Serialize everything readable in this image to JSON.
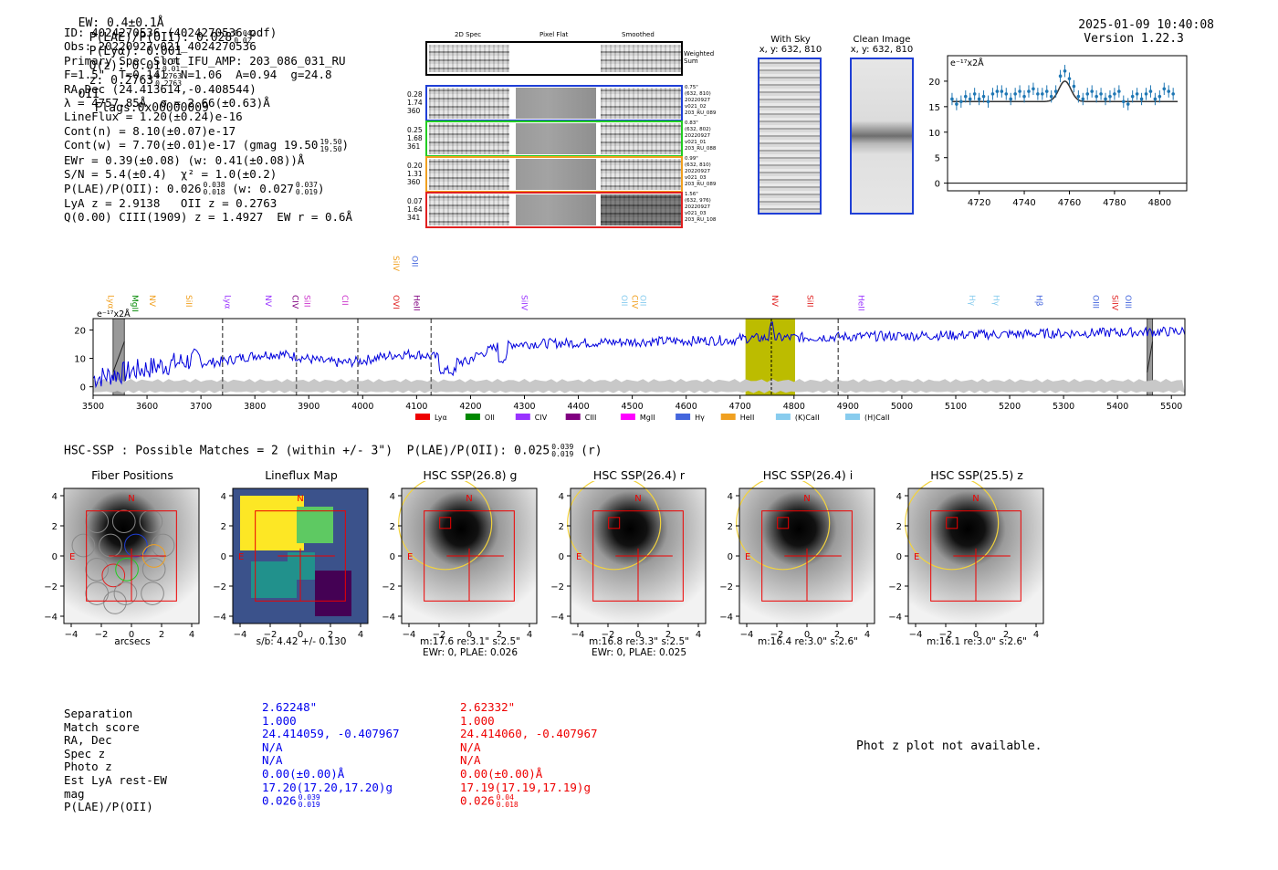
{
  "header": {
    "ew": "EW: 0.4±0.1Å",
    "plae_label": "P(LAE)/P(OII): 0.028",
    "plae_hi": "0.042",
    "plae_lo": "0.02",
    "plya": "P(Lyα): 0.001",
    "qz_label": "Q(z): 0.01",
    "qz_hi": "0.01",
    "qz_lo": "0.01",
    "z_label": "z: 0.2763",
    "z_hi": "0.2763",
    "z_lo": "0.2763",
    "z_line": "OII",
    "flags": "Flags:0x00000009",
    "datetime": "2025-01-09 10:40:08",
    "version": "Version 1.22.3"
  },
  "info": {
    "id": "ID: 4024270536 (4024270536.pdf)",
    "obs": "Obs: 20220927v021_4024270536",
    "primary": "Primary Spec_Slot_IFU_AMP: 203_086_031_RU",
    "fit": "F=1.5\"  T=0.141  N=1.06  A=0.94  g=24.8",
    "radec": "RA,Dec (24.413614,-0.408544)",
    "lambda": "λ = 4757.85Å  σ = 2.66(±0.63)Å",
    "lineflux": "LineFlux = 1.20(±0.24)e-16",
    "contn": "Cont(n) = 8.10(±0.07)e-17",
    "contw": "Cont(w) = 7.70(±0.01)e-17 (gmag 19.50",
    "contw_hi": "19.50",
    "contw_lo": "19.50",
    "contw_close": ")",
    "ewr": "EWr = 0.39(±0.08) (w: 0.41(±0.08))Å",
    "sn": "S/N = 5.4(±0.4)  χ² = 1.0(±0.2)",
    "plae": "P(LAE)/P(OII): 0.026",
    "plae_hi": "0.038",
    "plae_lo": "0.018",
    "plae_w": "(w: 0.027",
    "plae_w_hi": "0.037",
    "plae_w_lo": "0.019",
    "plae_w_close": ")",
    "lyaz": "LyA z = 2.9138   OII z = 0.2763",
    "ciii": "Q(0.00) CIII(1909) z = 1.4927  EW r = 0.6Å"
  },
  "cutouts": {
    "col_2d": "2D Spec",
    "col_flat": "Pixel Flat",
    "col_smooth": "Smoothed",
    "weighted": "Weighted",
    "sum": "Sum",
    "rows": [
      {
        "left": [
          "0.28",
          "1.74",
          "360"
        ],
        "right": [
          "0.75\"",
          "(632, 810)",
          "20220927",
          "v021_02",
          "203_RU_089"
        ],
        "color": "#1f3fd6"
      },
      {
        "left": [
          "0.25",
          "1.68",
          "361"
        ],
        "right": [
          "0.83\"",
          "(632, 802)",
          "20220927",
          "v021_01",
          "203_RU_088"
        ],
        "color": "#22cc22"
      },
      {
        "left": [
          "0.20",
          "1.31",
          "360"
        ],
        "right": [
          "0.99\"",
          "(632, 810)",
          "20220927",
          "v021_03",
          "203_RU_089"
        ],
        "color": "#f0a020"
      },
      {
        "left": [
          "0.07",
          "1.64",
          "341"
        ],
        "right": [
          "1.56\"",
          "(632, 976)",
          "20220927",
          "v021_03",
          "203_RU_108"
        ],
        "color": "#e02020"
      }
    ],
    "with_sky": "With Sky",
    "clean": "Clean Image",
    "xy": "x, y: 632, 810"
  },
  "zoom_chart": {
    "type": "line",
    "title": "e⁻¹⁷x2Å",
    "xlim": [
      4706,
      4812
    ],
    "ylim": [
      -1.5,
      25
    ],
    "xticks": [
      4720,
      4740,
      4760,
      4780,
      4800
    ],
    "yticks": [
      0,
      5,
      10,
      15,
      20
    ],
    "data_x": [
      4708,
      4710,
      4712,
      4714,
      4716,
      4718,
      4720,
      4722,
      4724,
      4726,
      4728,
      4730,
      4732,
      4734,
      4736,
      4738,
      4740,
      4742,
      4744,
      4746,
      4748,
      4750,
      4752,
      4754,
      4756,
      4758,
      4760,
      4762,
      4764,
      4766,
      4768,
      4770,
      4772,
      4774,
      4776,
      4778,
      4780,
      4782,
      4784,
      4786,
      4788,
      4790,
      4792,
      4794,
      4796,
      4798,
      4800,
      4802,
      4804,
      4806
    ],
    "data_y": [
      16.5,
      15.5,
      16,
      17,
      16.5,
      17.5,
      16.5,
      17,
      16,
      17.5,
      18,
      18,
      17.5,
      16.5,
      17.5,
      18,
      17,
      18,
      18.5,
      17.5,
      17.5,
      18,
      17,
      18,
      21,
      22,
      20.5,
      19,
      17,
      16.5,
      17.5,
      18,
      17,
      17.5,
      16.5,
      17,
      17.5,
      18,
      16,
      15.5,
      17,
      17.5,
      16.5,
      17.5,
      18,
      16.5,
      17,
      18.5,
      18,
      17.5
    ],
    "model_peak": 4758,
    "model_base": 16,
    "model_amp": 4,
    "model_sigma": 2.66
  },
  "full_chart": {
    "type": "line",
    "ylabel": "e⁻¹⁷x2Å",
    "xlim": [
      3500,
      5525
    ],
    "ylim": [
      -3,
      24
    ],
    "xticks": [
      3500,
      3600,
      3700,
      3800,
      3900,
      4000,
      4100,
      4200,
      4300,
      4400,
      4500,
      4600,
      4700,
      4800,
      4900,
      5000,
      5100,
      5200,
      5300,
      5400,
      5500
    ],
    "yticks": [
      0,
      10,
      20
    ],
    "highlight": [
      4710,
      4802
    ],
    "dashed": [
      3740,
      3877,
      3991,
      4127,
      4882
    ],
    "gray_bands": [
      [
        3537,
        3558
      ],
      [
        5455,
        5465
      ]
    ],
    "lines": [
      {
        "name": "Lyα",
        "x": 3523,
        "color": "#f0a020"
      },
      {
        "name": "MgII",
        "x": 3568,
        "color": "#008800"
      },
      {
        "name": "NV",
        "x": 3600,
        "color": "#f0a020"
      },
      {
        "name": "SiII",
        "x": 3668,
        "color": "#f0a020"
      },
      {
        "name": "Lyα",
        "x": 3740,
        "color": "#9933ff"
      },
      {
        "name": "NV",
        "x": 3815,
        "color": "#9933ff"
      },
      {
        "name": "CIV",
        "x": 3865,
        "color": "#800080"
      },
      {
        "name": "SiII",
        "x": 3887,
        "color": "#cc33cc"
      },
      {
        "name": "CII",
        "x": 3957,
        "color": "#cc33cc"
      },
      {
        "name": "OVI",
        "x": 4052,
        "color": "#e02020"
      },
      {
        "name": "HeII",
        "x": 4090,
        "color": "#800080"
      },
      {
        "name": "SiIV",
        "x": 4052,
        "color": "#f0a020"
      },
      {
        "name": "OII",
        "x": 4087,
        "color": "#4466dd"
      },
      {
        "name": "SiIV",
        "x": 4290,
        "color": "#9933ff"
      },
      {
        "name": "OII",
        "x": 4475,
        "color": "#88ccee"
      },
      {
        "name": "CIV",
        "x": 4495,
        "color": "#f0a020"
      },
      {
        "name": "OII",
        "x": 4510,
        "color": "#88ccee"
      },
      {
        "name": "NV",
        "x": 4755,
        "color": "#e02020"
      },
      {
        "name": "SiII",
        "x": 4820,
        "color": "#e02020"
      },
      {
        "name": "HeII",
        "x": 4915,
        "color": "#9933ff"
      },
      {
        "name": "Hγ",
        "x": 5120,
        "color": "#88ccee"
      },
      {
        "name": "Hγ",
        "x": 5165,
        "color": "#88ccee"
      },
      {
        "name": "Hβ",
        "x": 5245,
        "color": "#4466dd"
      },
      {
        "name": "OIII",
        "x": 5350,
        "color": "#4466dd"
      },
      {
        "name": "SiIV",
        "x": 5385,
        "color": "#e02020"
      },
      {
        "name": "OIII",
        "x": 5410,
        "color": "#4466dd"
      }
    ],
    "legend": [
      {
        "name": "Lyα",
        "color": "#ee0000"
      },
      {
        "name": "OII",
        "color": "#008800"
      },
      {
        "name": "CIV",
        "color": "#9933ff"
      },
      {
        "name": "CIII",
        "color": "#800080"
      },
      {
        "name": "MgII",
        "color": "#ff00ff"
      },
      {
        "name": "Hγ",
        "color": "#4466dd"
      },
      {
        "name": "HeII",
        "color": "#f0a020"
      },
      {
        "name": "(K)CaII",
        "color": "#88ccee"
      },
      {
        "name": "(H)CaII",
        "color": "#88ccee"
      }
    ]
  },
  "hsc": {
    "title": "HSC-SSP : Possible Matches = 2 (within +/- 3\")  P(LAE)/P(OII): 0.025",
    "title_hi": "0.039",
    "title_lo": "0.019",
    "title_band": "(r)",
    "panels": [
      {
        "title": "Fiber Positions",
        "cap1": "arcsecs",
        "cap2": ""
      },
      {
        "title": "Lineflux Map",
        "cap1": "s/b: 4.42 +/- 0.130",
        "cap2": ""
      },
      {
        "title": "HSC SSP(26.8) g",
        "cap1": "m:17.6  re:3.1\"  s:2.5\"",
        "cap2": "EWr: 0, PLAE: 0.026"
      },
      {
        "title": "HSC SSP(26.4) r",
        "cap1": "m:16.8  re:3.3\"  s:2.5\"",
        "cap2": "EWr: 0, PLAE: 0.025"
      },
      {
        "title": "HSC SSP(26.4) i",
        "cap1": "m:16.4  re:3.0\"  s:2.6\"",
        "cap2": ""
      },
      {
        "title": "HSC SSP(25.5) z",
        "cap1": "m:16.1  re:3.0\"  s:2.6\"",
        "cap2": ""
      }
    ],
    "ticks": [
      "4",
      "2",
      "0",
      "−2",
      "−4"
    ],
    "xticks": [
      "−4",
      "−2",
      "0",
      "2",
      "4"
    ],
    "n": "N",
    "e": "E"
  },
  "table": {
    "labels": [
      "Separation",
      "Match score",
      "RA, Dec",
      "Spec z",
      "Photo z",
      "Est LyA rest-EW",
      "mag",
      "P(LAE)/P(OII)"
    ],
    "col1": [
      "2.62248\"",
      "1.000",
      "24.414059, -0.407967",
      "N/A",
      "N/A",
      "0.00(±0.00)Å",
      "17.20(17.20,17.20)g",
      "0.026"
    ],
    "col1_hi": "0.039",
    "col1_lo": "0.019",
    "col2": [
      "2.62332\"",
      "1.000",
      "24.414060, -0.407967",
      "N/A",
      "N/A",
      "0.00(±0.00)Å",
      "17.19(17.19,17.19)g",
      "0.026"
    ],
    "col2_hi": "0.04",
    "col2_lo": "0.018",
    "phot_z": "Phot z plot not available."
  },
  "colors": {
    "blue": "#0000ee",
    "red": "#ee0000",
    "spec_blue": "#0000dd",
    "err_blue": "#1f77b4",
    "highlight": "#bcbc00",
    "yellow": "#f2d23c"
  }
}
